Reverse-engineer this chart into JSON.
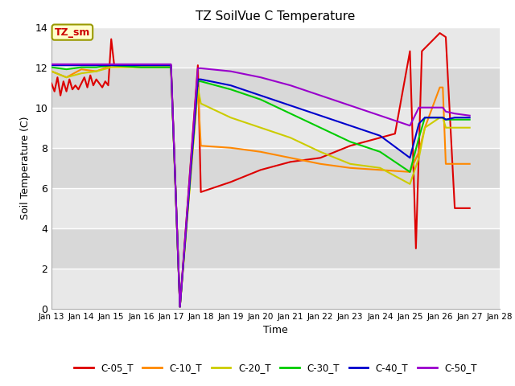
{
  "title": "TZ SoilVue C Temperature",
  "xlabel": "Time",
  "ylabel": "Soil Temperature (C)",
  "ylim": [
    0,
    14
  ],
  "xlim": [
    13,
    28
  ],
  "background_color": "#ffffff",
  "plot_bg_color": "#e8e8e8",
  "grid_color": "#ffffff",
  "annotation_label": "TZ_sm",
  "annotation_color": "#cc0000",
  "annotation_bg": "#ffffcc",
  "annotation_border": "#999900",
  "series_order": [
    "C-05_T",
    "C-10_T",
    "C-20_T",
    "C-30_T",
    "C-40_T",
    "C-50_T"
  ],
  "series": {
    "C-05_T": {
      "color": "#dd0000",
      "data": [
        [
          13.0,
          11.2
        ],
        [
          13.1,
          10.8
        ],
        [
          13.2,
          11.5
        ],
        [
          13.3,
          10.6
        ],
        [
          13.4,
          11.3
        ],
        [
          13.5,
          10.8
        ],
        [
          13.6,
          11.4
        ],
        [
          13.7,
          10.9
        ],
        [
          13.8,
          11.1
        ],
        [
          13.9,
          10.9
        ],
        [
          14.0,
          11.2
        ],
        [
          14.1,
          11.5
        ],
        [
          14.2,
          11.0
        ],
        [
          14.3,
          11.6
        ],
        [
          14.4,
          11.1
        ],
        [
          14.5,
          11.4
        ],
        [
          14.6,
          11.2
        ],
        [
          14.7,
          11.0
        ],
        [
          14.8,
          11.3
        ],
        [
          14.9,
          11.1
        ],
        [
          15.0,
          13.4
        ],
        [
          15.1,
          12.1
        ],
        [
          16.0,
          12.1
        ],
        [
          17.0,
          12.1
        ],
        [
          17.3,
          0.1
        ],
        [
          17.9,
          12.1
        ],
        [
          18.0,
          5.8
        ],
        [
          19.0,
          6.3
        ],
        [
          20.0,
          6.9
        ],
        [
          21.0,
          7.3
        ],
        [
          22.0,
          7.5
        ],
        [
          23.0,
          8.1
        ],
        [
          24.0,
          8.5
        ],
        [
          24.5,
          8.7
        ],
        [
          25.0,
          12.8
        ],
        [
          25.2,
          3.0
        ],
        [
          25.4,
          12.8
        ],
        [
          26.0,
          13.7
        ],
        [
          26.2,
          13.5
        ],
        [
          26.5,
          5.0
        ],
        [
          27.0,
          5.0
        ]
      ]
    },
    "C-10_T": {
      "color": "#ff8800",
      "data": [
        [
          13.0,
          11.8
        ],
        [
          13.5,
          11.5
        ],
        [
          14.0,
          11.9
        ],
        [
          14.5,
          11.8
        ],
        [
          15.0,
          12.1
        ],
        [
          16.0,
          12.0
        ],
        [
          17.0,
          12.0
        ],
        [
          17.3,
          0.1
        ],
        [
          17.9,
          11.0
        ],
        [
          18.0,
          8.1
        ],
        [
          19.0,
          8.0
        ],
        [
          20.0,
          7.8
        ],
        [
          21.0,
          7.5
        ],
        [
          22.0,
          7.2
        ],
        [
          23.0,
          7.0
        ],
        [
          24.0,
          6.9
        ],
        [
          25.0,
          6.8
        ],
        [
          25.3,
          7.8
        ],
        [
          25.5,
          9.0
        ],
        [
          26.0,
          11.0
        ],
        [
          26.1,
          11.0
        ],
        [
          26.2,
          7.2
        ],
        [
          27.0,
          7.2
        ]
      ]
    },
    "C-20_T": {
      "color": "#cccc00",
      "data": [
        [
          13.0,
          11.8
        ],
        [
          13.5,
          11.5
        ],
        [
          14.0,
          11.7
        ],
        [
          14.5,
          11.8
        ],
        [
          15.0,
          12.0
        ],
        [
          16.0,
          12.0
        ],
        [
          17.0,
          12.0
        ],
        [
          17.3,
          0.1
        ],
        [
          17.9,
          11.0
        ],
        [
          18.0,
          10.2
        ],
        [
          19.0,
          9.5
        ],
        [
          20.0,
          9.0
        ],
        [
          21.0,
          8.5
        ],
        [
          22.0,
          7.8
        ],
        [
          23.0,
          7.2
        ],
        [
          24.0,
          7.0
        ],
        [
          25.0,
          6.2
        ],
        [
          25.3,
          7.5
        ],
        [
          25.5,
          9.0
        ],
        [
          26.0,
          9.5
        ],
        [
          26.1,
          9.5
        ],
        [
          26.2,
          9.0
        ],
        [
          26.5,
          9.0
        ],
        [
          27.0,
          9.0
        ]
      ]
    },
    "C-30_T": {
      "color": "#00cc00",
      "data": [
        [
          13.0,
          12.0
        ],
        [
          13.5,
          11.9
        ],
        [
          14.0,
          12.0
        ],
        [
          14.5,
          12.0
        ],
        [
          15.0,
          12.1
        ],
        [
          16.0,
          12.0
        ],
        [
          17.0,
          12.0
        ],
        [
          17.3,
          0.1
        ],
        [
          17.9,
          11.3
        ],
        [
          18.0,
          11.3
        ],
        [
          19.0,
          10.9
        ],
        [
          20.0,
          10.4
        ],
        [
          21.0,
          9.7
        ],
        [
          22.0,
          9.0
        ],
        [
          23.0,
          8.3
        ],
        [
          24.0,
          7.8
        ],
        [
          25.0,
          6.8
        ],
        [
          25.3,
          8.5
        ],
        [
          25.5,
          9.5
        ],
        [
          26.0,
          9.5
        ],
        [
          26.1,
          9.5
        ],
        [
          26.2,
          9.4
        ],
        [
          26.5,
          9.4
        ],
        [
          27.0,
          9.4
        ]
      ]
    },
    "C-40_T": {
      "color": "#0000cc",
      "data": [
        [
          13.0,
          12.1
        ],
        [
          13.5,
          12.1
        ],
        [
          14.0,
          12.1
        ],
        [
          14.5,
          12.1
        ],
        [
          15.0,
          12.1
        ],
        [
          16.0,
          12.1
        ],
        [
          17.0,
          12.1
        ],
        [
          17.3,
          0.1
        ],
        [
          17.9,
          11.4
        ],
        [
          18.0,
          11.4
        ],
        [
          19.0,
          11.1
        ],
        [
          20.0,
          10.6
        ],
        [
          21.0,
          10.1
        ],
        [
          22.0,
          9.6
        ],
        [
          23.0,
          9.1
        ],
        [
          24.0,
          8.6
        ],
        [
          25.0,
          7.5
        ],
        [
          25.3,
          9.2
        ],
        [
          25.5,
          9.5
        ],
        [
          26.0,
          9.5
        ],
        [
          26.1,
          9.5
        ],
        [
          26.2,
          9.4
        ],
        [
          26.5,
          9.5
        ],
        [
          27.0,
          9.5
        ]
      ]
    },
    "C-50_T": {
      "color": "#9900cc",
      "data": [
        [
          13.0,
          12.15
        ],
        [
          13.5,
          12.15
        ],
        [
          14.0,
          12.15
        ],
        [
          14.5,
          12.15
        ],
        [
          15.0,
          12.15
        ],
        [
          16.0,
          12.15
        ],
        [
          17.0,
          12.15
        ],
        [
          17.3,
          0.1
        ],
        [
          17.9,
          11.95
        ],
        [
          18.0,
          11.95
        ],
        [
          19.0,
          11.8
        ],
        [
          20.0,
          11.5
        ],
        [
          21.0,
          11.1
        ],
        [
          22.0,
          10.6
        ],
        [
          23.0,
          10.1
        ],
        [
          24.0,
          9.6
        ],
        [
          25.0,
          9.1
        ],
        [
          25.3,
          10.0
        ],
        [
          25.5,
          10.0
        ],
        [
          26.0,
          10.0
        ],
        [
          26.1,
          10.0
        ],
        [
          26.2,
          9.8
        ],
        [
          26.5,
          9.7
        ],
        [
          27.0,
          9.6
        ]
      ]
    }
  },
  "xtick_labels": [
    "Jan 13",
    "Jan 14",
    "Jan 15",
    "Jan 16",
    "Jan 17",
    "Jan 18",
    "Jan 19",
    "Jan 20",
    "Jan 21",
    "Jan 22",
    "Jan 23",
    "Jan 24",
    "Jan 25",
    "Jan 26",
    "Jan 27",
    "Jan 28"
  ],
  "xtick_positions": [
    13,
    14,
    15,
    16,
    17,
    18,
    19,
    20,
    21,
    22,
    23,
    24,
    25,
    26,
    27,
    28
  ],
  "ytick_positions": [
    0,
    2,
    4,
    6,
    8,
    10,
    12,
    14
  ],
  "band_colors": [
    "#e8e8e8",
    "#d8d8d8"
  ],
  "band_ranges": [
    [
      0,
      2
    ],
    [
      2,
      4
    ],
    [
      4,
      6
    ],
    [
      6,
      8
    ],
    [
      8,
      10
    ],
    [
      10,
      12
    ],
    [
      12,
      14
    ]
  ]
}
